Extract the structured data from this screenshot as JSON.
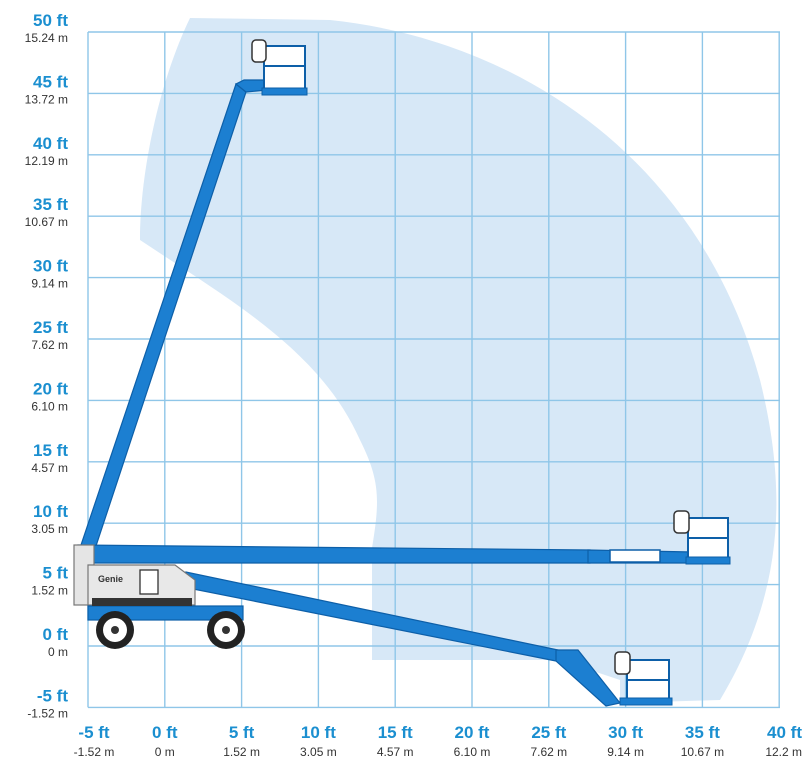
{
  "colors": {
    "label_blue": "#1b8fd0",
    "grid": "#8fc6e8",
    "envelope": "#d7e8f7",
    "boom": "#1c7fd1",
    "boom_dark": "#0d5fa8"
  },
  "y_axis": {
    "ticks": [
      {
        "ft": "50 ft",
        "m": "15.24 m"
      },
      {
        "ft": "45 ft",
        "m": "13.72 m"
      },
      {
        "ft": "40 ft",
        "m": "12.19 m"
      },
      {
        "ft": "35 ft",
        "m": "10.67 m"
      },
      {
        "ft": "30 ft",
        "m": "9.14 m"
      },
      {
        "ft": "25 ft",
        "m": "7.62 m"
      },
      {
        "ft": "20 ft",
        "m": "6.10 m"
      },
      {
        "ft": "15 ft",
        "m": "4.57 m"
      },
      {
        "ft": "10 ft",
        "m": "3.05 m"
      },
      {
        "ft": "5 ft",
        "m": "1.52 m"
      },
      {
        "ft": "0 ft",
        "m": "0 m"
      },
      {
        "ft": "-5 ft",
        "m": "-1.52 m"
      }
    ]
  },
  "x_axis": {
    "ticks": [
      {
        "ft": "-5 ft",
        "m": "-1.52 m"
      },
      {
        "ft": "0 ft",
        "m": "0 m"
      },
      {
        "ft": "5 ft",
        "m": "1.52 m"
      },
      {
        "ft": "10 ft",
        "m": "3.05 m"
      },
      {
        "ft": "15 ft",
        "m": "4.57 m"
      },
      {
        "ft": "20 ft",
        "m": "6.10 m"
      },
      {
        "ft": "25 ft",
        "m": "7.62 m"
      },
      {
        "ft": "30 ft",
        "m": "9.14 m"
      },
      {
        "ft": "35 ft",
        "m": "10.67 m"
      },
      {
        "ft": "40 ft",
        "m": "12.2 m"
      }
    ]
  },
  "machine_logo": "Genie"
}
